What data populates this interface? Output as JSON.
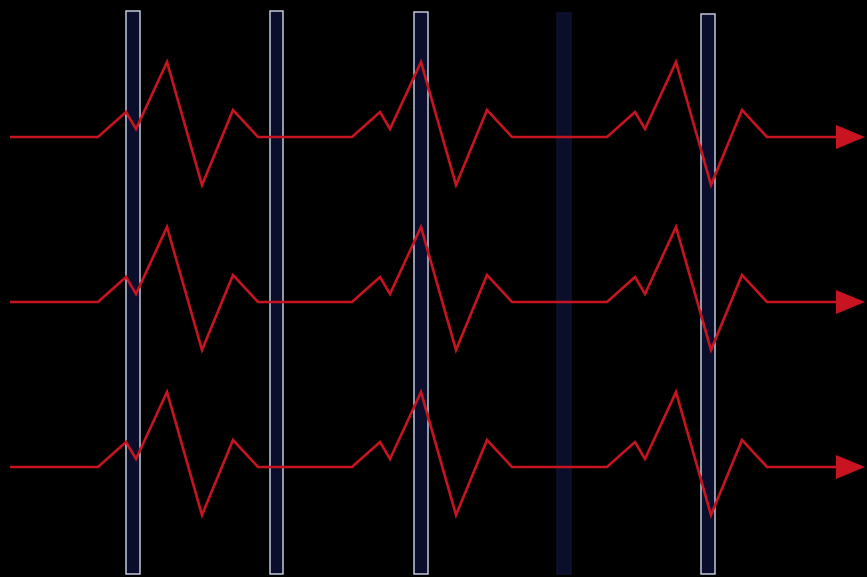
{
  "diagram": {
    "background_color": "#000000",
    "trace_color": "#c81420",
    "bar_fill_color": "#0b0e2a",
    "bar_outline_color": "#cfd6ea",
    "traces": [
      {
        "name": "trace-1"
      },
      {
        "name": "trace-2"
      },
      {
        "name": "trace-3"
      }
    ],
    "bars": [
      {
        "style": "outlined"
      },
      {
        "style": "outlined"
      },
      {
        "style": "outlined"
      },
      {
        "style": "dark"
      },
      {
        "style": "outlined"
      }
    ]
  }
}
